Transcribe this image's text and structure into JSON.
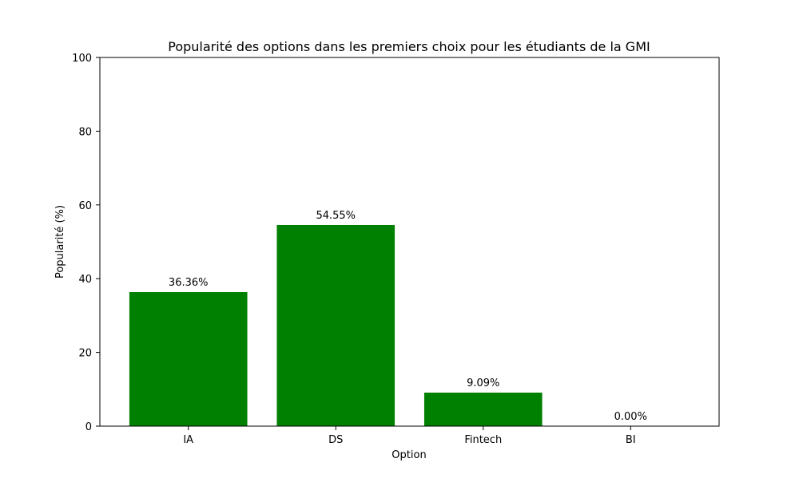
{
  "chart_data": {
    "type": "bar",
    "title": "Popularité des options dans les premiers choix pour les étudiants de la GMI",
    "xlabel": "Option",
    "ylabel": "Popularité (%)",
    "categories": [
      "IA",
      "DS",
      "Fintech",
      "BI"
    ],
    "values": [
      36.36,
      54.55,
      9.09,
      0.0
    ],
    "value_labels": [
      "36.36%",
      "54.55%",
      "9.09%",
      "0.00%"
    ],
    "ylim": [
      0,
      100
    ],
    "yticks": [
      0,
      20,
      40,
      60,
      80,
      100
    ],
    "ytick_labels": [
      "0",
      "20",
      "40",
      "60",
      "80",
      "100"
    ],
    "grid": false,
    "legend": "none",
    "bar_color": "#008000"
  }
}
